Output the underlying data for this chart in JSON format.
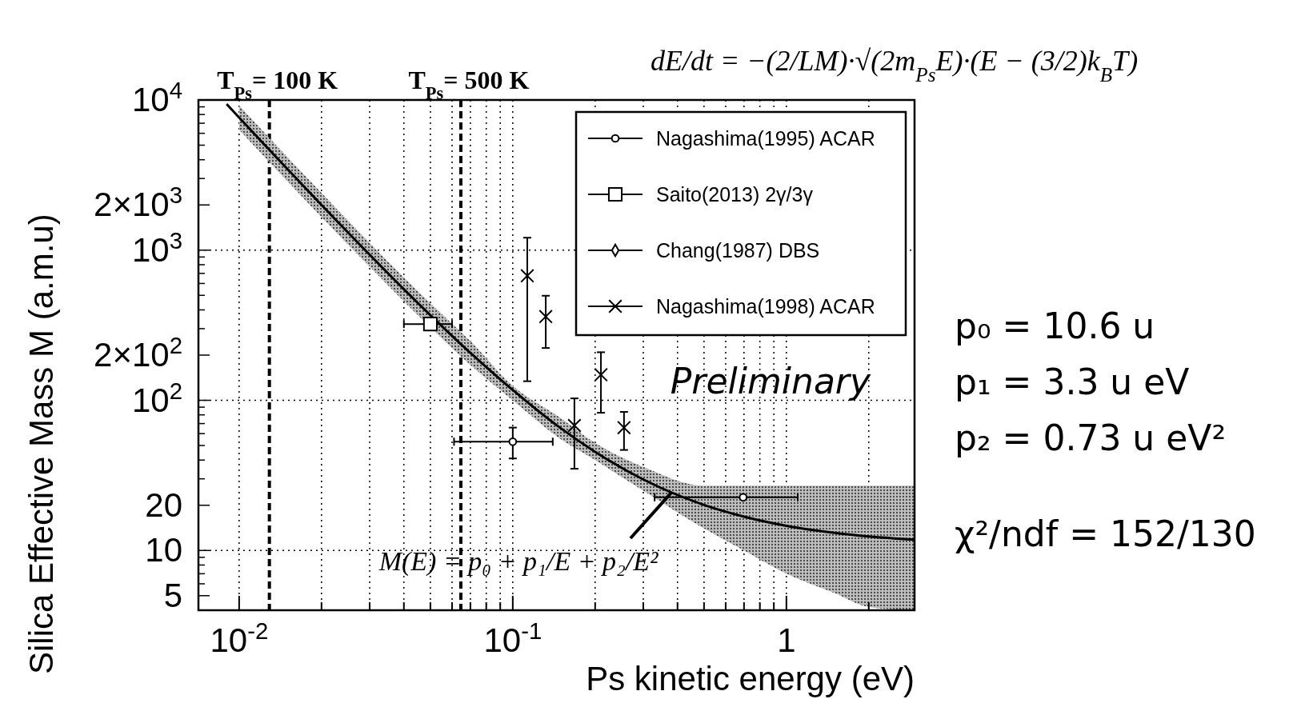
{
  "chart_data": {
    "type": "scatter",
    "xlabel": "Ps kinetic energy (eV)",
    "ylabel": "Silica Effective Mass M (a.m.u)",
    "log": "xy",
    "grid": true,
    "legend": "top right",
    "xlim": [
      0.0071,
      2.94
    ],
    "ylim": [
      4,
      10000
    ],
    "xticks": [
      {
        "value": 0.01,
        "label": "10$^{-2}$"
      },
      {
        "value": 0.02,
        "label": null
      },
      {
        "value": 0.03,
        "label": null
      },
      {
        "value": 0.04,
        "label": null
      },
      {
        "value": 0.05,
        "label": null
      },
      {
        "value": 0.06,
        "label": null
      },
      {
        "value": 0.07,
        "label": null
      },
      {
        "value": 0.08,
        "label": null
      },
      {
        "value": 0.09,
        "label": null
      },
      {
        "value": 0.1,
        "label": "10$^{-1}$"
      },
      {
        "value": 0.2,
        "label": null
      },
      {
        "value": 0.3,
        "label": null
      },
      {
        "value": 0.4,
        "label": null
      },
      {
        "value": 0.5,
        "label": null
      },
      {
        "value": 0.6,
        "label": null
      },
      {
        "value": 0.7,
        "label": null
      },
      {
        "value": 0.8,
        "label": null
      },
      {
        "value": 0.9,
        "label": null
      },
      1,
      {
        "value": 2,
        "label": null
      }
    ],
    "yticks": [
      5,
      {
        "value": 6,
        "label": null
      },
      {
        "value": 7,
        "label": null
      },
      {
        "value": 8,
        "label": null
      },
      {
        "value": 9,
        "label": null
      },
      {
        "value": 10,
        "label": "10"
      },
      20,
      {
        "value": 30,
        "label": null
      },
      {
        "value": 40,
        "label": null
      },
      {
        "value": 50,
        "label": null
      },
      {
        "value": 60,
        "label": null
      },
      {
        "value": 70,
        "label": null
      },
      {
        "value": 80,
        "label": null
      },
      {
        "value": 90,
        "label": null
      },
      {
        "value": 100,
        "label": "10$^{2}$"
      },
      {
        "value": 200,
        "label": "2×10$^{2}$"
      },
      {
        "value": 300,
        "label": null
      },
      {
        "value": 400,
        "label": null
      },
      {
        "value": 500,
        "label": null
      },
      {
        "value": 600,
        "label": null
      },
      {
        "value": 700,
        "label": null
      },
      {
        "value": 800,
        "label": null
      },
      {
        "value": 900,
        "label": null
      },
      {
        "value": 1000,
        "label": "10$^{3}$"
      },
      {
        "value": 2000,
        "label": "2×10$^{3}$"
      },
      {
        "value": 3000,
        "label": null
      },
      {
        "value": 4000,
        "label": null
      },
      {
        "value": 5000,
        "label": null
      },
      {
        "value": 6000,
        "label": null
      },
      {
        "value": 7000,
        "label": null
      },
      {
        "value": 8000,
        "label": null
      },
      {
        "value": 9000,
        "label": null
      },
      {
        "value": 10000,
        "label": "10$^{4}$"
      }
    ],
    "ref_lines": [
      {
        "axis": "x",
        "value": 0.0129,
        "line_style": "dashed"
      },
      {
        "axis": "x",
        "value": 0.0646,
        "line_style": "dashed"
      }
    ],
    "series": [
      {
        "type": "line",
        "color": "#000000",
        "x": [
          0.009,
          0.01,
          0.012,
          0.015,
          0.02,
          0.03,
          0.04,
          0.05,
          0.07,
          0.1,
          0.15,
          0.2,
          0.3,
          0.5,
          0.7,
          1,
          1.5,
          2,
          2.94
        ],
        "values": [
          9389,
          7641,
          5355,
          3475,
          2001,
          932,
          549,
          369,
          207,
          117,
          65,
          45.4,
          29.7,
          20.1,
          16.8,
          14.6,
          13.1,
          12.4,
          11.8
        ],
        "lower": [
          null,
          6340,
          4440,
          2880,
          1660,
          775,
          456,
          306,
          172,
          100,
          55,
          40,
          25,
          14,
          10,
          7,
          5.2,
          4.2,
          4
        ],
        "upper": [
          null,
          9169,
          6426,
          4170,
          2400,
          1118,
          659,
          443,
          248,
          125,
          76,
          52,
          36,
          27,
          27,
          27,
          27,
          27,
          27
        ]
      },
      {
        "name": "Nagashima(1995) ACAR",
        "color": "#000000",
        "marker": "circle",
        "x": [
          0.1,
          0.695
        ],
        "values": [
          53,
          22.6
        ],
        "errors": [
          [
            41,
            65.8
          ],
          null
        ],
        "xerrors": [
          [
            0.061,
            0.14
          ],
          [
            0.33,
            1.1
          ]
        ]
      },
      {
        "name": "Saito(2013) 2γ/3γ",
        "color": "#000000",
        "marker": "square",
        "x": [
          0.05
        ],
        "values": [
          322
        ],
        "xerrors": [
          [
            0.04,
            0.06
          ]
        ]
      },
      {
        "name": "Chang(1987) DBS",
        "color": "#000000",
        "marker": "diamond"
      },
      {
        "name": "Nagashima(1998) ACAR",
        "color": "#000000",
        "marker": "cross",
        "x": [
          0.113,
          0.132,
          0.21,
          0.168,
          0.255
        ],
        "values": [
          675,
          361,
          148,
          68,
          65.8
        ],
        "errors": [
          [
            134,
            1210
          ],
          [
            223,
            497
          ],
          [
            82.6,
            209
          ],
          [
            35,
            103
          ],
          [
            46.7,
            83.7
          ]
        ]
      }
    ],
    "annotations": [
      "dE/dt = −(2/LM)·√(2m$_{Ps}$E)·(E − (3/2)k$_{B}$T)",
      "Preliminary",
      "p₀ = 10.6 u",
      "p₁ = 3.3 u eV",
      "p₂ = 0.73 u eV²",
      "χ²/ndf = 152/130",
      {
        "text": "M(E) = p₀ + p₁/E + p₂/E²",
        "x": 0.38,
        "y": 24.3
      },
      "T$_{Ps}$= 100 K",
      "T$_{Ps}$= 500 K"
    ]
  }
}
